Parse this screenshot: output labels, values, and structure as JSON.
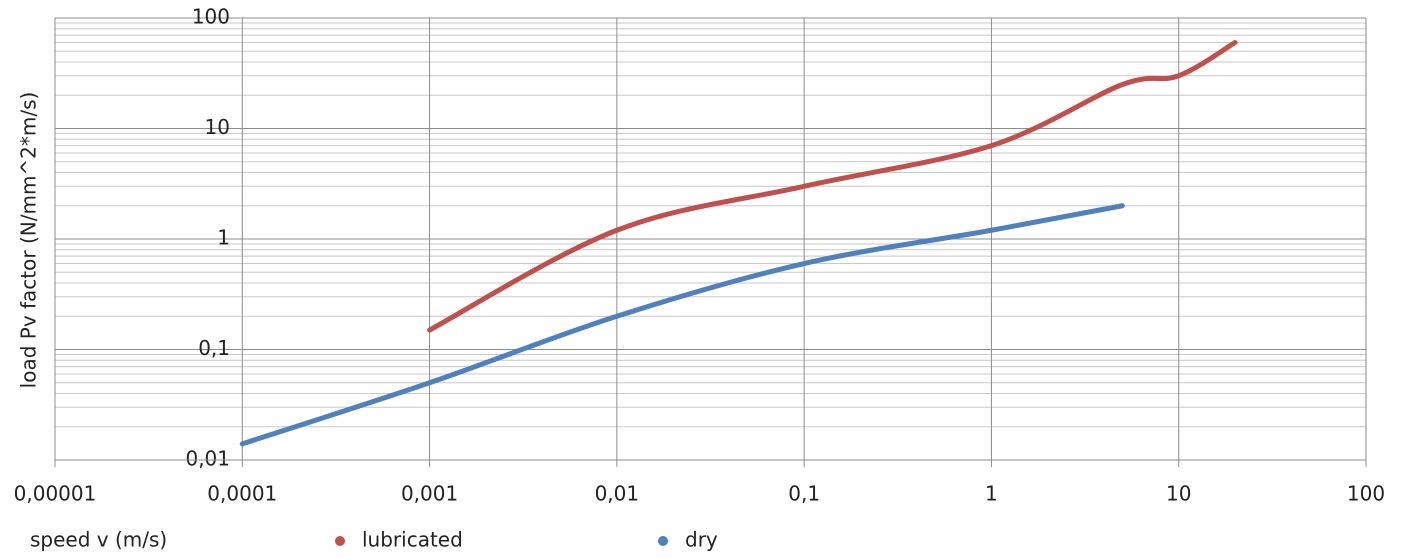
{
  "chart_data": {
    "type": "line",
    "x_label": "speed v (m/s)",
    "y_label": "load Pv factor (N/mm^2*m/s)",
    "x_log": true,
    "y_log": true,
    "grid": true,
    "y_minor_grid": true,
    "smooth": true,
    "legend": "bottom",
    "xlim": [
      1e-05,
      100
    ],
    "xticks": [
      {
        "value": 1e-05,
        "label": "0,00001"
      },
      {
        "value": 0.0001,
        "label": "0,0001"
      },
      {
        "value": 0.001,
        "label": "0,001"
      },
      {
        "value": 0.01,
        "label": "0,01"
      },
      {
        "value": 0.1,
        "label": "0,1"
      },
      1,
      10,
      100
    ],
    "ylim": [
      0.01,
      100
    ],
    "yticks": [
      {
        "value": 0.01,
        "label": "0,01"
      },
      {
        "value": 0.1,
        "label": "0,1"
      },
      1,
      10,
      100
    ],
    "series": [
      {
        "name": "lubricated",
        "color": "#c0504d",
        "x": [
          0.001,
          0.01,
          0.1,
          1,
          5,
          10,
          20
        ],
        "values": [
          0.15,
          1.2,
          3,
          7,
          25,
          30,
          60
        ]
      },
      {
        "name": "dry",
        "color": "#4f81bd",
        "x": [
          0.0001,
          0.001,
          0.01,
          0.1,
          1,
          5
        ],
        "values": [
          0.014,
          0.05,
          0.2,
          0.6,
          1.2,
          2
        ]
      }
    ]
  }
}
